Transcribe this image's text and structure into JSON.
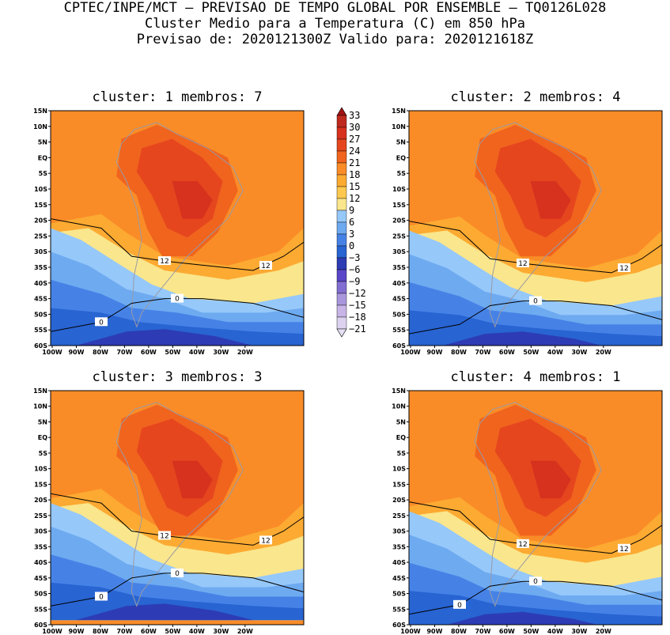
{
  "header": {
    "line1": "CPTEC/INPE/MCT — PREVISAO DE TEMPO GLOBAL POR ENSEMBLE — TQ0126L028",
    "line2": "Cluster Medio para a Temperatura (C) em 850 hPa",
    "line3": "Previsao de: 2020121300Z   Valido para: 2020121618Z"
  },
  "panels": [
    {
      "title": "cluster: 1   membros: 7",
      "contour_labels": [
        "12",
        "12",
        "0",
        "0"
      ]
    },
    {
      "title": "cluster: 2   membros: 4",
      "contour_labels": [
        "12",
        "12",
        "0"
      ]
    },
    {
      "title": "cluster: 3   membros: 3",
      "contour_labels": [
        "12",
        "12",
        "0",
        "0"
      ]
    },
    {
      "title": "cluster: 4   membros: 1",
      "contour_labels": [
        "12",
        "12",
        "0",
        "0"
      ]
    }
  ],
  "lat_labels": [
    "15N",
    "10N",
    "5N",
    "EQ",
    "5S",
    "10S",
    "15S",
    "20S",
    "25S",
    "30S",
    "35S",
    "40S",
    "45S",
    "50S",
    "55S",
    "60S"
  ],
  "lon_labels": [
    "100W",
    "90W",
    "80W",
    "70W",
    "60W",
    "50W",
    "40W",
    "30W",
    "20W"
  ],
  "colorbar": {
    "labels": [
      "33",
      "30",
      "27",
      "24",
      "21",
      "18",
      "15",
      "12",
      "9",
      "6",
      "3",
      "0",
      "−3",
      "−6",
      "−9",
      "−12",
      "−15",
      "−18",
      "−21"
    ],
    "colors": [
      "#a01414",
      "#be2a1e",
      "#d6321e",
      "#e6461e",
      "#f0641e",
      "#fa8c28",
      "#fcaa32",
      "#fcc850",
      "#fae68c",
      "#96c8fa",
      "#6eaaf0",
      "#4682e6",
      "#2864d2",
      "#2d3cb4",
      "#5a46c8",
      "#826ed2",
      "#aa96dc",
      "#c8b4e6",
      "#dcd2f0",
      "#e6e0f4"
    ]
  },
  "field_colors": {
    "t21": "#e6461e",
    "t18": "#f0641e",
    "t15": "#fa8c28",
    "t12": "#fcaa32",
    "t9": "#fae68c",
    "t6": "#96c8fa",
    "t3": "#6eaaf0",
    "t0": "#4682e6",
    "tm3": "#2864d2",
    "tm6": "#2d3cb4",
    "tm9": "#5a46c8",
    "t24": "#d6321e"
  }
}
